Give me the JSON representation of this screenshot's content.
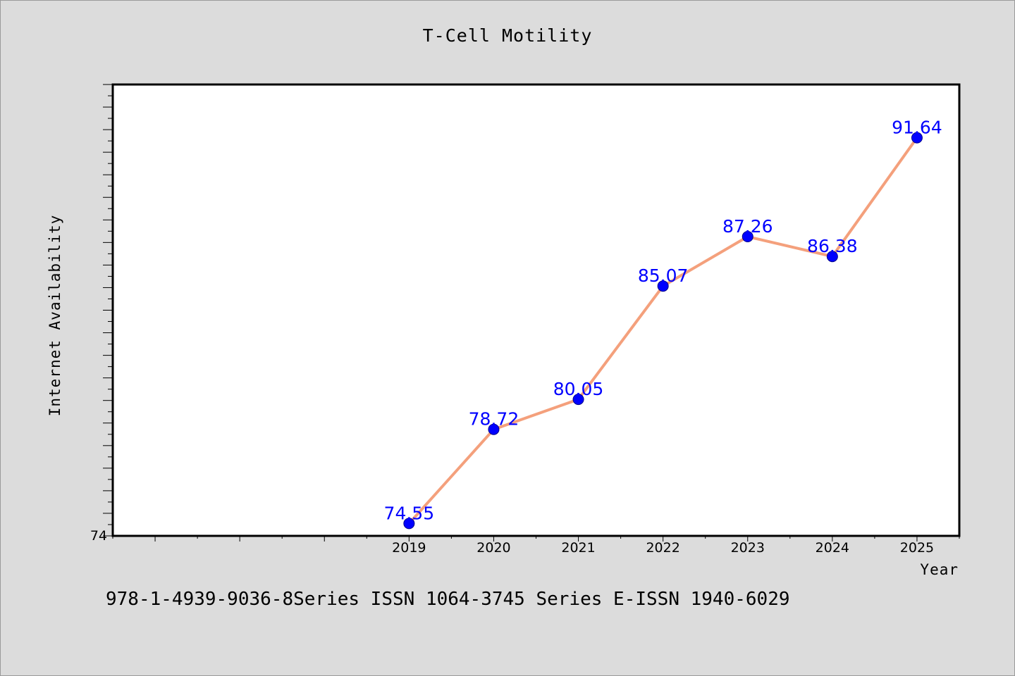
{
  "chart_data": {
    "type": "line",
    "title": "T-Cell Motility",
    "xlabel": "Year",
    "ylabel": "Internet Availability",
    "x": [
      "2019",
      "2020",
      "2021",
      "2022",
      "2023",
      "2024",
      "2025"
    ],
    "series": [
      {
        "values": [
          74.55,
          78.72,
          80.05,
          85.07,
          87.26,
          86.38,
          91.64
        ]
      }
    ],
    "data_labels": [
      "74.55",
      "78.72",
      "80.05",
      "85.07",
      "87.26",
      "86.38",
      "91.64"
    ],
    "ytick_labels": [
      "74"
    ],
    "ylim": [
      74,
      94
    ],
    "xlim": [
      2015.5,
      2025.5
    ],
    "grid": false,
    "colors": {
      "line": "#f4a07c",
      "marker": "#0000ff",
      "marker_edge": "#00008b",
      "data_label": "#0000ff",
      "background": "#dcdcdc",
      "plot_area": "#ffffff"
    }
  },
  "footer": {
    "text": "978-1-4939-9036-8Series ISSN 1064-3745 Series E-ISSN 1940-6029"
  }
}
